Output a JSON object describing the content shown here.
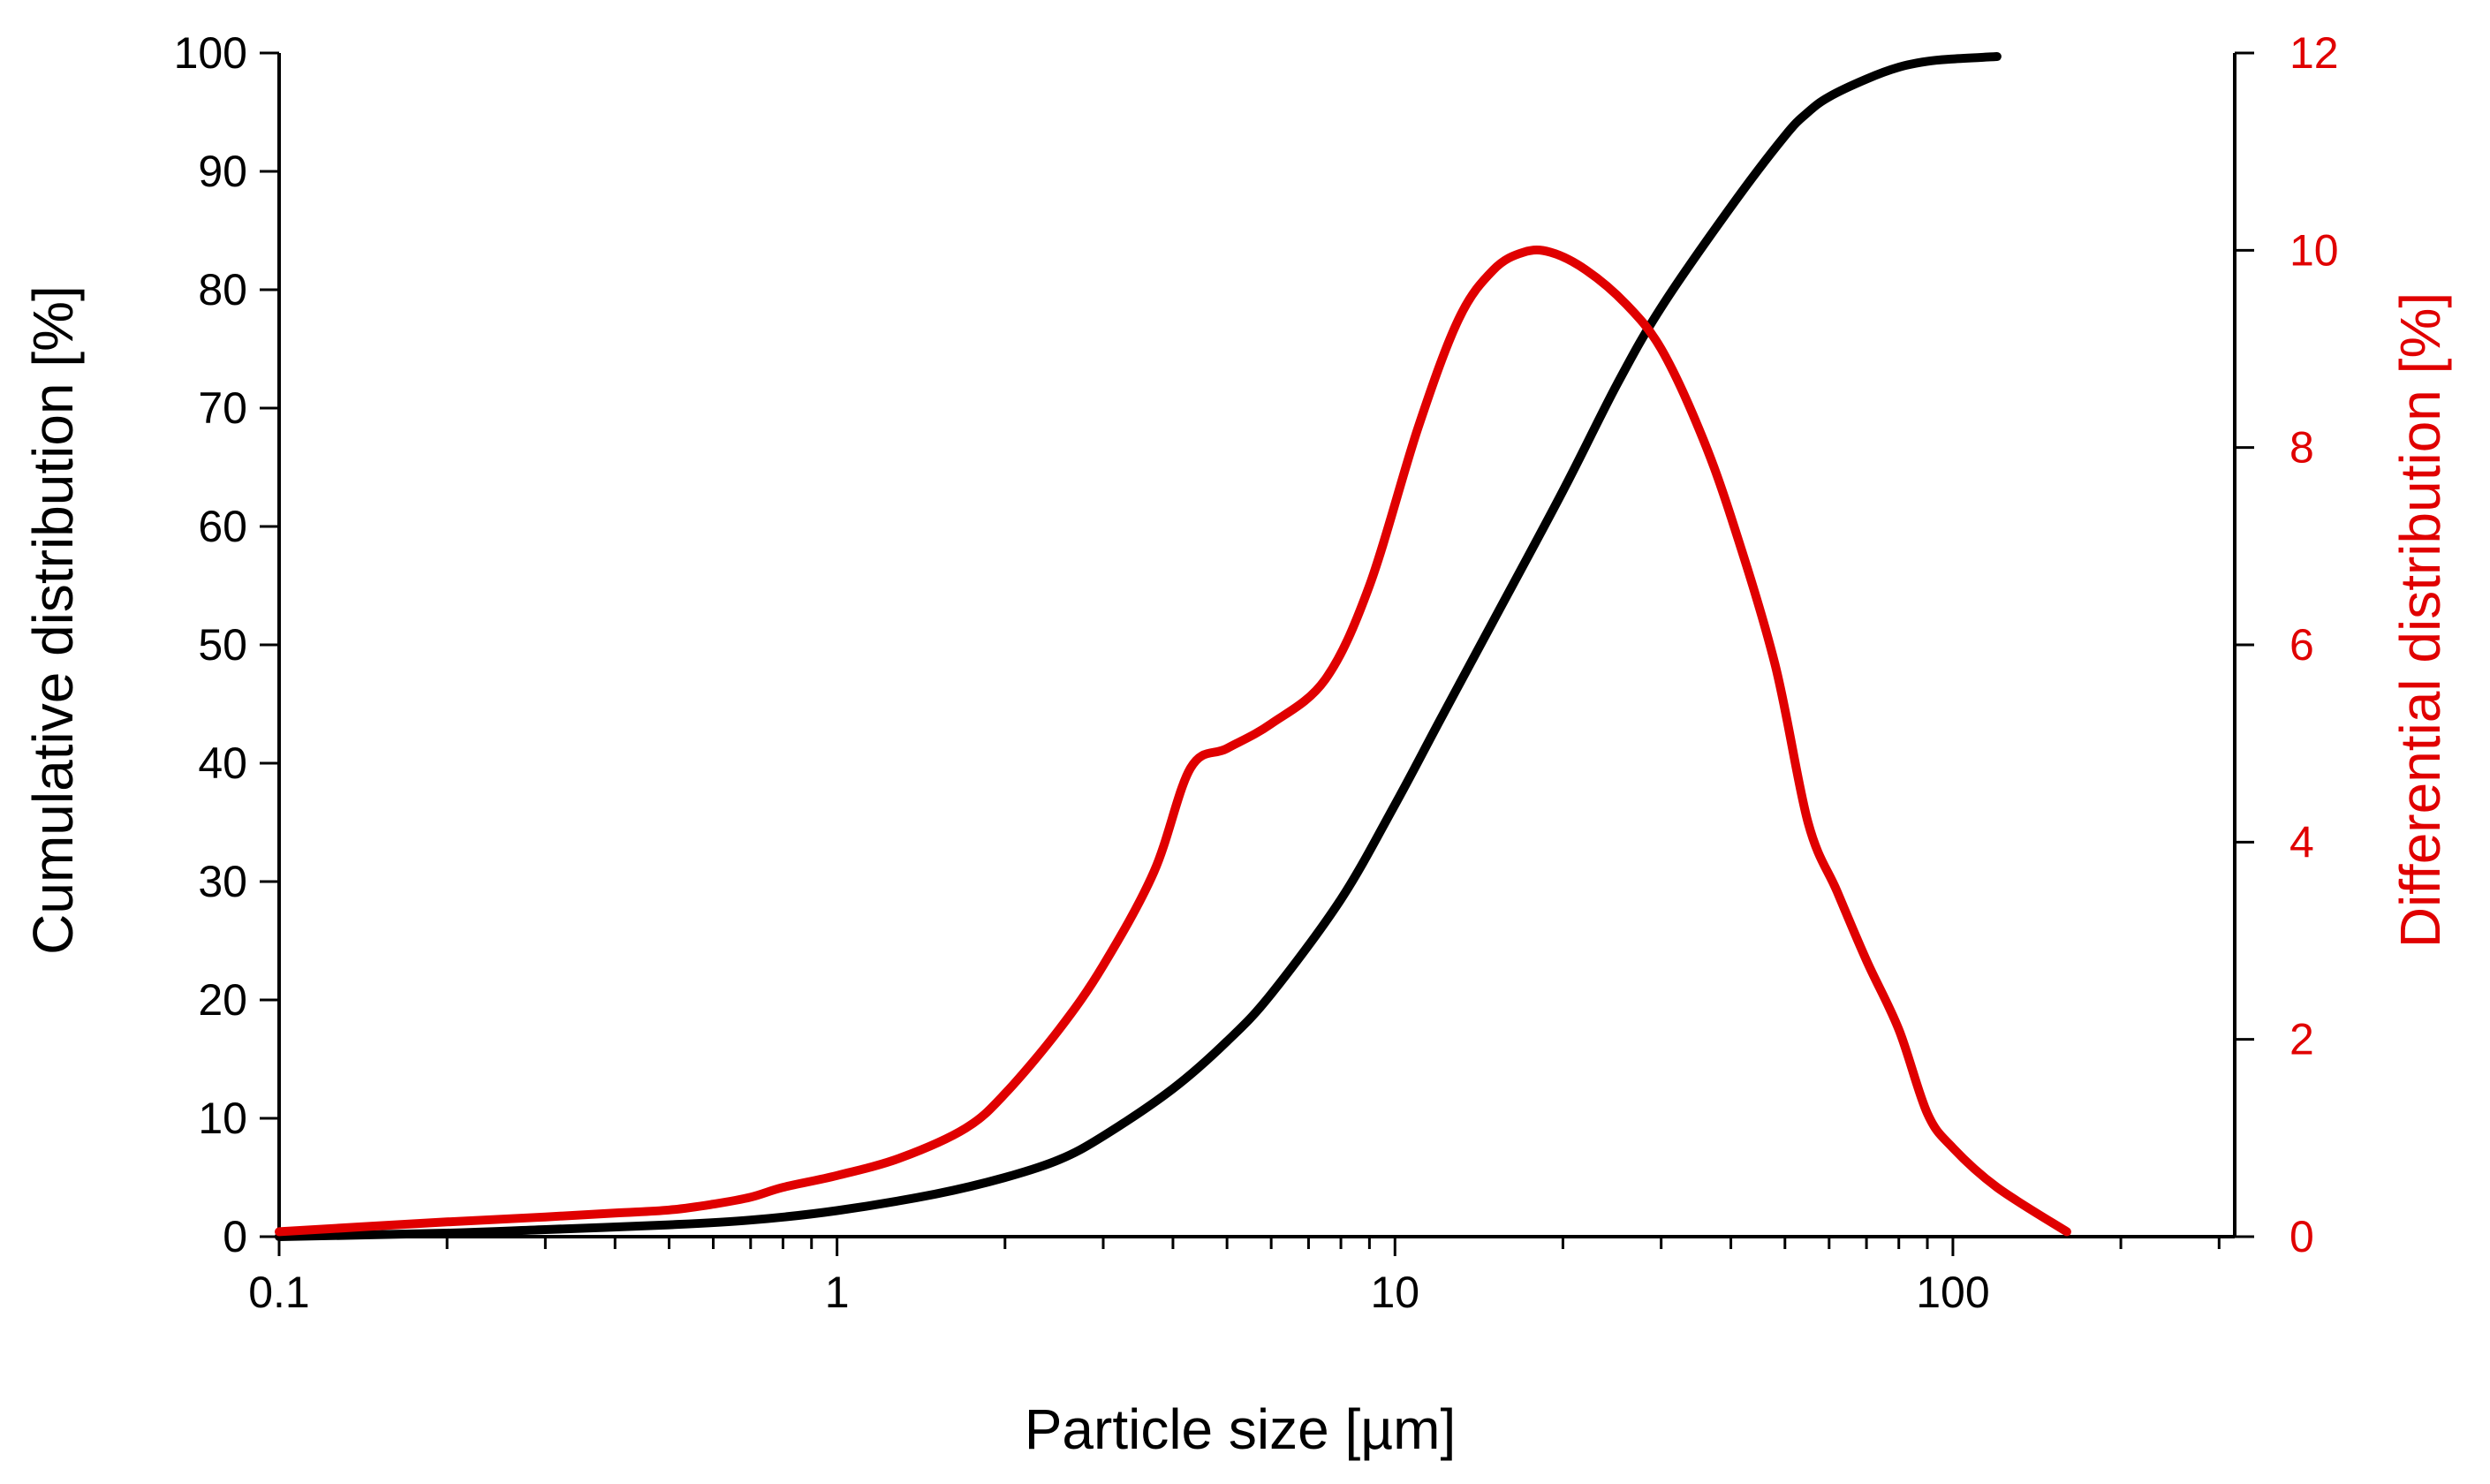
{
  "chart_data": {
    "type": "line",
    "title": "",
    "xlabel": "Particle size [µm]",
    "ylabel": "Cumulative distribution [%]",
    "y2label": "Differential distribution [%]",
    "xscale": "log",
    "xlim": [
      0.1,
      320
    ],
    "ylim": [
      0,
      100
    ],
    "y2lim": [
      0,
      12
    ],
    "x_ticks": [
      {
        "value": 0.1,
        "label": "0.1"
      },
      {
        "value": 1,
        "label": "1"
      },
      {
        "value": 10,
        "label": "10"
      },
      {
        "value": 100,
        "label": "100"
      }
    ],
    "y_ticks": [
      {
        "value": 0,
        "label": "0"
      },
      {
        "value": 10,
        "label": "10"
      },
      {
        "value": 20,
        "label": "20"
      },
      {
        "value": 30,
        "label": "30"
      },
      {
        "value": 40,
        "label": "40"
      },
      {
        "value": 50,
        "label": "50"
      },
      {
        "value": 60,
        "label": "60"
      },
      {
        "value": 70,
        "label": "70"
      },
      {
        "value": 80,
        "label": "80"
      },
      {
        "value": 90,
        "label": "90"
      },
      {
        "value": 100,
        "label": "100"
      }
    ],
    "y2_ticks": [
      {
        "value": 0,
        "label": "0"
      },
      {
        "value": 2,
        "label": "2"
      },
      {
        "value": 4,
        "label": "4"
      },
      {
        "value": 6,
        "label": "6"
      },
      {
        "value": 8,
        "label": "8"
      },
      {
        "value": 10,
        "label": "10"
      },
      {
        "value": 12,
        "label": "12"
      }
    ],
    "grid": false,
    "legend": "none",
    "series": [
      {
        "name": "Cumulative distribution",
        "axis": "left",
        "color": "#000000",
        "x": [
          0.1,
          0.2,
          0.3,
          0.5,
          0.7,
          1,
          1.5,
          2,
          2.5,
          3,
          4,
          5,
          6,
          8,
          10,
          12,
          15,
          20,
          25,
          30,
          40,
          50,
          55,
          60,
          70,
          80,
          90,
          100,
          120
        ],
        "y": [
          0,
          0.3,
          0.6,
          1.0,
          1.4,
          2.2,
          3.6,
          5.0,
          6.5,
          8.5,
          12.5,
          16.5,
          20.5,
          28.5,
          36.5,
          43.5,
          52,
          63,
          72,
          78.5,
          87,
          93,
          95,
          96.3,
          97.8,
          98.8,
          99.3,
          99.5,
          99.7
        ]
      },
      {
        "name": "Differential distribution",
        "axis": "right",
        "color": "#e00000",
        "x": [
          0.1,
          0.2,
          0.3,
          0.4,
          0.5,
          0.6,
          0.7,
          0.8,
          1,
          1.3,
          1.7,
          2,
          2.5,
          3,
          3.7,
          4.3,
          5,
          6,
          7.5,
          9,
          11,
          13,
          15,
          17,
          19,
          22,
          26,
          30,
          35,
          40,
          48,
          55,
          62,
          70,
          80,
          90,
          100,
          120,
          160
        ],
        "y": [
          0.05,
          0.15,
          0.2,
          0.24,
          0.27,
          0.33,
          0.4,
          0.5,
          0.62,
          0.8,
          1.1,
          1.45,
          2.1,
          2.75,
          3.7,
          4.75,
          4.95,
          5.2,
          5.65,
          6.6,
          8.2,
          9.3,
          9.8,
          9.98,
          9.98,
          9.8,
          9.45,
          9.0,
          8.2,
          7.3,
          5.8,
          4.2,
          3.5,
          2.8,
          2.1,
          1.25,
          0.9,
          0.5,
          0.05
        ]
      }
    ]
  }
}
